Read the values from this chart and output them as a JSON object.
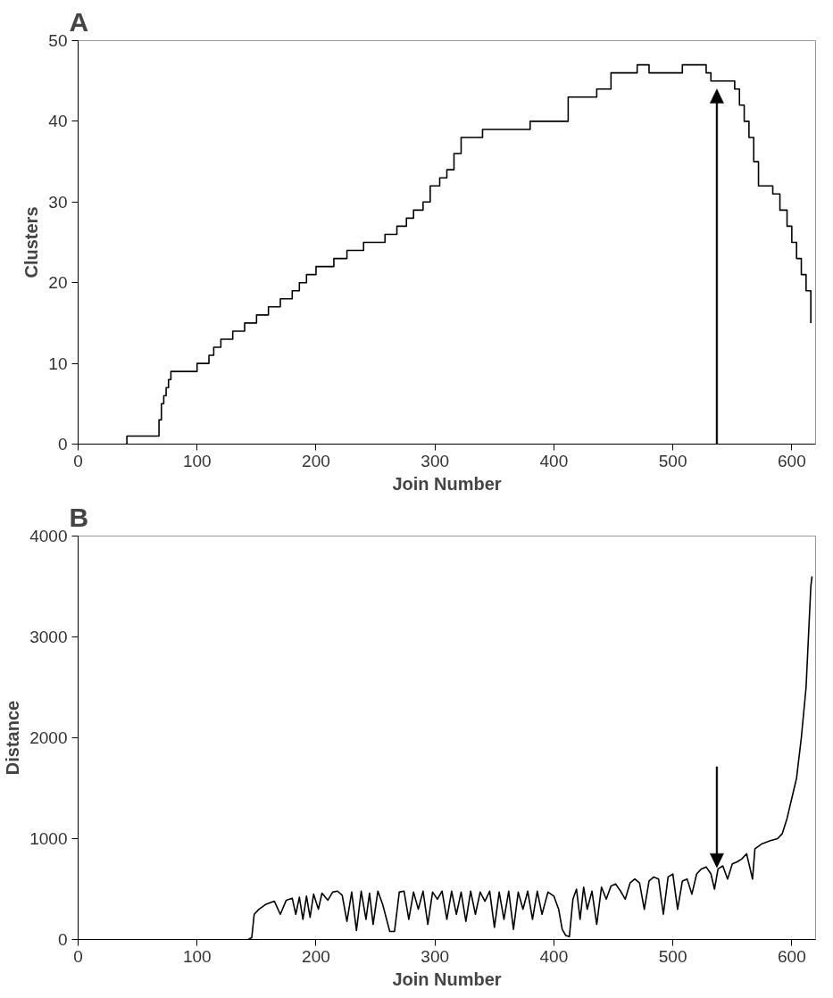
{
  "chart_data": [
    {
      "type": "step",
      "title": "A",
      "xlabel": "Join Number",
      "ylabel": "Clusters",
      "xlim": [
        0,
        620
      ],
      "xticks": [
        0,
        100,
        200,
        300,
        400,
        500,
        600
      ],
      "ylim": [
        0,
        50
      ],
      "yticks": [
        0,
        10,
        20,
        30,
        40,
        50
      ],
      "grid": false,
      "marker": "none",
      "line_style": "solid",
      "series": [
        {
          "color": "#000000",
          "x": [
            40,
            41,
            68,
            70,
            72,
            74,
            76,
            78,
            100,
            110,
            114,
            120,
            130,
            140,
            150,
            160,
            170,
            180,
            186,
            192,
            200,
            215,
            226,
            240,
            258,
            268,
            276,
            282,
            290,
            296,
            304,
            310,
            316,
            322,
            340,
            380,
            412,
            436,
            448,
            470,
            480,
            508,
            528,
            532,
            540,
            552,
            556,
            560,
            564,
            568,
            572,
            584,
            590,
            596,
            600,
            604,
            608,
            612,
            616
          ],
          "values": [
            0,
            1,
            3,
            5,
            6,
            7,
            8,
            9,
            10,
            11,
            12,
            13,
            14,
            15,
            16,
            17,
            18,
            19,
            20,
            21,
            22,
            23,
            24,
            25,
            26,
            27,
            28,
            29,
            30,
            32,
            33,
            34,
            36,
            38,
            39,
            40,
            43,
            44,
            46,
            47,
            46,
            47,
            46,
            45,
            45,
            44,
            42,
            40,
            38,
            35,
            32,
            31,
            29,
            27,
            25,
            23,
            21,
            19,
            15
          ]
        }
      ],
      "ref_lines": [
        {
          "axis": "x",
          "value": 537,
          "color": "#000000"
        }
      ]
    },
    {
      "type": "line",
      "title": "B",
      "xlabel": "Join Number",
      "ylabel": "Distance",
      "xlim": [
        0,
        620
      ],
      "xticks": [
        0,
        100,
        200,
        300,
        400,
        500,
        600
      ],
      "ylim": [
        0,
        4000
      ],
      "yticks": [
        0,
        1000,
        2000,
        3000,
        4000
      ],
      "grid": false,
      "marker": "none",
      "line_style": "solid",
      "series": [
        {
          "color": "#000000",
          "x": [
            143,
            146,
            148,
            152,
            158,
            165,
            170,
            175,
            180,
            183,
            186,
            189,
            192,
            195,
            198,
            202,
            205,
            210,
            214,
            218,
            222,
            226,
            230,
            234,
            238,
            242,
            245,
            248,
            252,
            256,
            262,
            266,
            270,
            274,
            278,
            282,
            286,
            290,
            294,
            298,
            302,
            306,
            310,
            314,
            318,
            322,
            326,
            330,
            334,
            338,
            342,
            346,
            350,
            354,
            358,
            362,
            366,
            370,
            374,
            378,
            382,
            386,
            390,
            395,
            400,
            404,
            407,
            410,
            413,
            416,
            419,
            422,
            425,
            428,
            432,
            436,
            440,
            444,
            448,
            452,
            456,
            460,
            464,
            468,
            472,
            476,
            480,
            484,
            488,
            492,
            496,
            500,
            504,
            508,
            512,
            516,
            520,
            524,
            528,
            532,
            535,
            538,
            542,
            546,
            550,
            554,
            558,
            562,
            565,
            567,
            569,
            575,
            582,
            588,
            592,
            596,
            600,
            604,
            608,
            612,
            614,
            616,
            617
          ],
          "values": [
            0,
            20,
            250,
            300,
            350,
            380,
            250,
            390,
            410,
            250,
            420,
            200,
            430,
            220,
            450,
            300,
            460,
            390,
            470,
            480,
            440,
            180,
            470,
            90,
            480,
            200,
            460,
            150,
            480,
            350,
            80,
            80,
            470,
            480,
            200,
            470,
            300,
            480,
            150,
            470,
            400,
            480,
            200,
            480,
            250,
            470,
            180,
            480,
            250,
            470,
            380,
            480,
            120,
            470,
            200,
            480,
            100,
            470,
            300,
            480,
            200,
            480,
            250,
            470,
            430,
            300,
            100,
            40,
            30,
            400,
            500,
            200,
            520,
            300,
            480,
            150,
            520,
            400,
            530,
            550,
            480,
            400,
            560,
            600,
            560,
            300,
            580,
            620,
            600,
            250,
            620,
            650,
            300,
            580,
            600,
            450,
            650,
            700,
            720,
            650,
            500,
            700,
            730,
            600,
            750,
            770,
            800,
            850,
            700,
            600,
            900,
            950,
            980,
            1000,
            1050,
            1200,
            1400,
            1600,
            2000,
            2500,
            3000,
            3500,
            3600
          ]
        }
      ],
      "ref_lines": [
        {
          "axis": "x",
          "value": 537,
          "color": "#000000"
        }
      ]
    }
  ]
}
